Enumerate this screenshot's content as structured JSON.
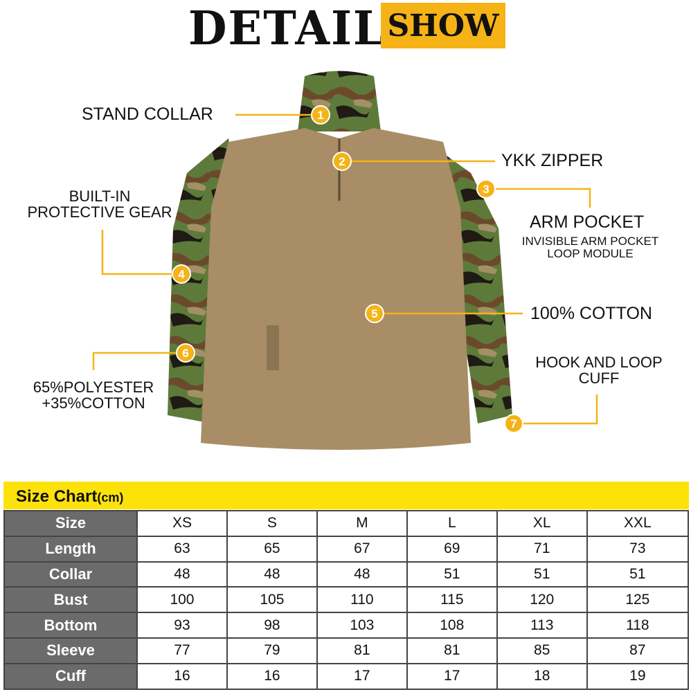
{
  "header": {
    "title_main": "DETAIL",
    "title_badge": "SHOW"
  },
  "colors": {
    "accent": "#f5b318",
    "table_header": "#fde20a",
    "row_header": "#6b6b6b"
  },
  "callouts": [
    {
      "num": "1",
      "label": "STAND COLLAR"
    },
    {
      "num": "2",
      "label": "YKK ZIPPER"
    },
    {
      "num": "3",
      "label": "ARM POCKET",
      "sub": "INVISIBLE ARM POCKET LOOP MODULE"
    },
    {
      "num": "4",
      "label": "BUILT-IN PROTECTIVE GEAR"
    },
    {
      "num": "5",
      "label": "100% COTTON"
    },
    {
      "num": "6",
      "label": "65%POLYESTER +35%COTTON"
    },
    {
      "num": "7",
      "label": "HOOK AND LOOP CUFF"
    }
  ],
  "size_chart": {
    "title": "Size Chart",
    "unit": "(cm)",
    "rows": [
      [
        "Size",
        "XS",
        "S",
        "M",
        "L",
        "XL",
        "XXL"
      ],
      [
        "Length",
        "63",
        "65",
        "67",
        "69",
        "71",
        "73"
      ],
      [
        "Collar",
        "48",
        "48",
        "48",
        "51",
        "51",
        "51"
      ],
      [
        "Bust",
        "100",
        "105",
        "110",
        "115",
        "120",
        "125"
      ],
      [
        "Bottom",
        "93",
        "98",
        "103",
        "108",
        "113",
        "118"
      ],
      [
        "Sleeve",
        "77",
        "79",
        "81",
        "81",
        "85",
        "87"
      ],
      [
        "Cuff",
        "16",
        "16",
        "17",
        "17",
        "18",
        "19"
      ]
    ]
  }
}
